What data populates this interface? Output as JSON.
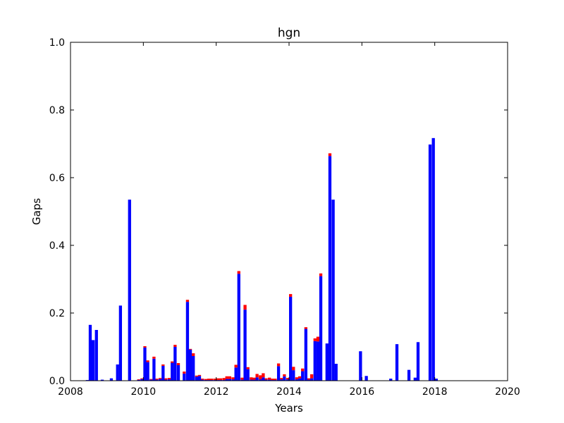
{
  "chart_data": {
    "type": "bar",
    "stacked": true,
    "title": "hgn",
    "xlabel": "Years",
    "ylabel": "Gaps",
    "xlim": [
      2008,
      2020
    ],
    "ylim": [
      0,
      1.0
    ],
    "x_ticks": [
      "2008",
      "2010",
      "2012",
      "2014",
      "2016",
      "2018",
      "2020"
    ],
    "y_ticks": [
      "0.0",
      "0.2",
      "0.4",
      "0.6",
      "0.8",
      "1.0"
    ],
    "grid": false,
    "bar_width_years": 0.0833,
    "colors": {
      "primary": "#0000ff",
      "secondary": "#ff0000"
    },
    "series": [
      {
        "color": "#0000ff",
        "points": [
          [
            2008.42,
            0.002
          ],
          [
            2008.5,
            0.165
          ],
          [
            2008.58,
            0.12
          ],
          [
            2008.67,
            0.15
          ],
          [
            2008.83,
            0.003
          ],
          [
            2009.08,
            0.007
          ],
          [
            2009.25,
            0.048
          ],
          [
            2009.33,
            0.222
          ],
          [
            2009.58,
            0.535
          ],
          [
            2009.83,
            0.003
          ],
          [
            2009.92,
            0.005
          ],
          [
            2010.0,
            0.098
          ],
          [
            2010.08,
            0.055
          ],
          [
            2010.17,
            0.003
          ],
          [
            2010.25,
            0.065
          ],
          [
            2010.33,
            0.003
          ],
          [
            2010.42,
            0.005
          ],
          [
            2010.5,
            0.044
          ],
          [
            2010.58,
            0.003
          ],
          [
            2010.67,
            0.004
          ],
          [
            2010.75,
            0.053
          ],
          [
            2010.83,
            0.1
          ],
          [
            2010.92,
            0.046
          ],
          [
            2011.08,
            0.021
          ],
          [
            2011.17,
            0.233
          ],
          [
            2011.25,
            0.092
          ],
          [
            2011.33,
            0.073
          ],
          [
            2011.42,
            0.012
          ],
          [
            2011.5,
            0.014
          ],
          [
            2011.58,
            0.003
          ],
          [
            2011.67,
            0.002
          ],
          [
            2011.75,
            0.002
          ],
          [
            2011.83,
            0.002
          ],
          [
            2011.92,
            0.002
          ],
          [
            2012.0,
            0.002
          ],
          [
            2012.08,
            0.002
          ],
          [
            2012.17,
            0.002
          ],
          [
            2012.25,
            0.005
          ],
          [
            2012.33,
            0.005
          ],
          [
            2012.42,
            0.004
          ],
          [
            2012.5,
            0.039
          ],
          [
            2012.58,
            0.316
          ],
          [
            2012.67,
            0.003
          ],
          [
            2012.75,
            0.21
          ],
          [
            2012.83,
            0.034
          ],
          [
            2012.92,
            0.003
          ],
          [
            2013.0,
            0.003
          ],
          [
            2013.08,
            0.01
          ],
          [
            2013.17,
            0.004
          ],
          [
            2013.25,
            0.01
          ],
          [
            2013.33,
            0.003
          ],
          [
            2013.42,
            0.003
          ],
          [
            2013.5,
            0.002
          ],
          [
            2013.58,
            0.002
          ],
          [
            2013.67,
            0.043
          ],
          [
            2013.75,
            0.004
          ],
          [
            2013.83,
            0.013
          ],
          [
            2013.92,
            0.004
          ],
          [
            2014.0,
            0.248
          ],
          [
            2014.08,
            0.031
          ],
          [
            2014.17,
            0.004
          ],
          [
            2014.25,
            0.007
          ],
          [
            2014.33,
            0.028
          ],
          [
            2014.42,
            0.153
          ],
          [
            2014.5,
            0.003
          ],
          [
            2014.58,
            0.007
          ],
          [
            2014.67,
            0.117
          ],
          [
            2014.75,
            0.116
          ],
          [
            2014.83,
            0.309
          ],
          [
            2015.0,
            0.11
          ],
          [
            2015.08,
            0.664
          ],
          [
            2015.17,
            0.535
          ],
          [
            2015.25,
            0.05
          ],
          [
            2015.92,
            0.087
          ],
          [
            2016.08,
            0.014
          ],
          [
            2016.75,
            0.006
          ],
          [
            2016.92,
            0.108
          ],
          [
            2017.25,
            0.032
          ],
          [
            2017.42,
            0.009
          ],
          [
            2017.5,
            0.114
          ],
          [
            2017.83,
            0.698
          ],
          [
            2017.92,
            0.717
          ],
          [
            2018.0,
            0.006
          ]
        ]
      },
      {
        "color": "#ff0000",
        "points": [
          [
            2008.42,
            0.0
          ],
          [
            2008.5,
            0.0
          ],
          [
            2008.58,
            0.0
          ],
          [
            2008.67,
            0.0
          ],
          [
            2008.83,
            0.0
          ],
          [
            2009.08,
            0.0
          ],
          [
            2009.25,
            0.0
          ],
          [
            2009.33,
            0.0
          ],
          [
            2009.58,
            0.0
          ],
          [
            2009.83,
            0.001
          ],
          [
            2009.92,
            0.002
          ],
          [
            2010.0,
            0.004
          ],
          [
            2010.08,
            0.005
          ],
          [
            2010.17,
            0.002
          ],
          [
            2010.25,
            0.006
          ],
          [
            2010.33,
            0.003
          ],
          [
            2010.42,
            0.003
          ],
          [
            2010.5,
            0.004
          ],
          [
            2010.58,
            0.004
          ],
          [
            2010.67,
            0.004
          ],
          [
            2010.75,
            0.004
          ],
          [
            2010.83,
            0.006
          ],
          [
            2010.92,
            0.006
          ],
          [
            2011.08,
            0.006
          ],
          [
            2011.17,
            0.006
          ],
          [
            2011.25,
            0.002
          ],
          [
            2011.33,
            0.008
          ],
          [
            2011.42,
            0.003
          ],
          [
            2011.5,
            0.003
          ],
          [
            2011.58,
            0.003
          ],
          [
            2011.67,
            0.003
          ],
          [
            2011.75,
            0.004
          ],
          [
            2011.83,
            0.004
          ],
          [
            2011.92,
            0.004
          ],
          [
            2012.0,
            0.005
          ],
          [
            2012.08,
            0.005
          ],
          [
            2012.17,
            0.006
          ],
          [
            2012.25,
            0.008
          ],
          [
            2012.33,
            0.008
          ],
          [
            2012.42,
            0.006
          ],
          [
            2012.5,
            0.008
          ],
          [
            2012.58,
            0.008
          ],
          [
            2012.67,
            0.006
          ],
          [
            2012.75,
            0.014
          ],
          [
            2012.83,
            0.006
          ],
          [
            2012.92,
            0.007
          ],
          [
            2013.0,
            0.006
          ],
          [
            2013.08,
            0.01
          ],
          [
            2013.17,
            0.012
          ],
          [
            2013.25,
            0.012
          ],
          [
            2013.33,
            0.004
          ],
          [
            2013.42,
            0.006
          ],
          [
            2013.5,
            0.004
          ],
          [
            2013.58,
            0.004
          ],
          [
            2013.67,
            0.008
          ],
          [
            2013.75,
            0.004
          ],
          [
            2013.83,
            0.006
          ],
          [
            2013.92,
            0.004
          ],
          [
            2014.0,
            0.008
          ],
          [
            2014.08,
            0.01
          ],
          [
            2014.17,
            0.006
          ],
          [
            2014.25,
            0.006
          ],
          [
            2014.33,
            0.008
          ],
          [
            2014.42,
            0.005
          ],
          [
            2014.5,
            0.004
          ],
          [
            2014.58,
            0.012
          ],
          [
            2014.67,
            0.008
          ],
          [
            2014.75,
            0.014
          ],
          [
            2014.83,
            0.008
          ],
          [
            2015.0,
            0.0
          ],
          [
            2015.08,
            0.008
          ],
          [
            2015.17,
            0.0
          ],
          [
            2015.25,
            0.0
          ],
          [
            2015.92,
            0.0
          ],
          [
            2016.08,
            0.0
          ],
          [
            2016.75,
            0.0
          ],
          [
            2016.92,
            0.0
          ],
          [
            2017.25,
            0.0
          ],
          [
            2017.42,
            0.0
          ],
          [
            2017.5,
            0.0
          ],
          [
            2017.83,
            0.0
          ],
          [
            2017.92,
            0.0
          ],
          [
            2018.0,
            0.0
          ]
        ]
      }
    ]
  }
}
